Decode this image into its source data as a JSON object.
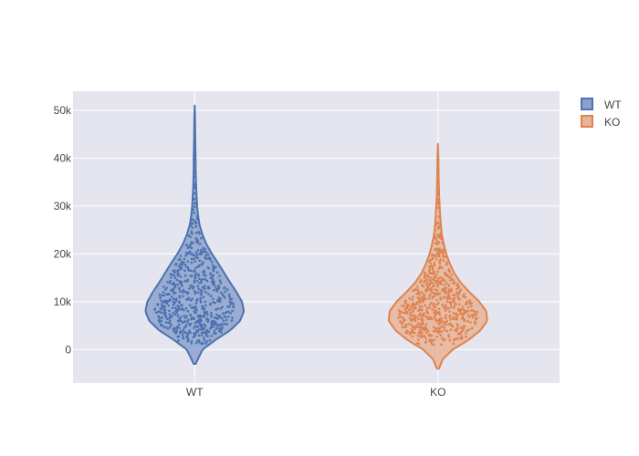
{
  "chart_data": {
    "type": "violin",
    "title": "",
    "xlabel": "",
    "ylabel": "",
    "categories": [
      "WT",
      "KO"
    ],
    "ylim": [
      -7000,
      54000
    ],
    "yticks": [
      0,
      10000,
      20000,
      30000,
      40000,
      50000
    ],
    "ytick_labels": [
      "0",
      "10k",
      "20k",
      "30k",
      "40k",
      "50k"
    ],
    "grid": true,
    "legend_position": "top-right",
    "series": [
      {
        "name": "WT",
        "color": "#4c72b0",
        "fill": "#8ca2cc",
        "kde_min": -3000,
        "kde_max": 51000,
        "point_count": 650,
        "point_min": 1000,
        "point_max": 47000,
        "median_approx": 9000,
        "density_profile": [
          [
            -3000,
            0.02
          ],
          [
            0,
            0.16
          ],
          [
            2000,
            0.42
          ],
          [
            4000,
            0.72
          ],
          [
            6000,
            0.92
          ],
          [
            8000,
            1.0
          ],
          [
            10000,
            0.96
          ],
          [
            12000,
            0.85
          ],
          [
            14000,
            0.72
          ],
          [
            16000,
            0.6
          ],
          [
            18000,
            0.48
          ],
          [
            20000,
            0.35
          ],
          [
            22000,
            0.24
          ],
          [
            24000,
            0.16
          ],
          [
            26000,
            0.1
          ],
          [
            28000,
            0.07
          ],
          [
            30000,
            0.05
          ],
          [
            32000,
            0.04
          ],
          [
            34000,
            0.03
          ],
          [
            36000,
            0.025
          ],
          [
            38000,
            0.02
          ],
          [
            40000,
            0.02
          ],
          [
            42000,
            0.015
          ],
          [
            44000,
            0.012
          ],
          [
            46000,
            0.01
          ],
          [
            48000,
            0.008
          ],
          [
            51000,
            0.0
          ]
        ]
      },
      {
        "name": "KO",
        "color": "#dd8452",
        "fill": "#e8b497",
        "kde_min": -4000,
        "kde_max": 43000,
        "point_count": 650,
        "point_min": 1000,
        "point_max": 40000,
        "median_approx": 7500,
        "density_profile": [
          [
            -4000,
            0.02
          ],
          [
            -2000,
            0.1
          ],
          [
            0,
            0.3
          ],
          [
            2000,
            0.62
          ],
          [
            4000,
            0.86
          ],
          [
            6000,
            1.0
          ],
          [
            8000,
            0.98
          ],
          [
            10000,
            0.84
          ],
          [
            12000,
            0.64
          ],
          [
            14000,
            0.46
          ],
          [
            16000,
            0.33
          ],
          [
            18000,
            0.24
          ],
          [
            20000,
            0.17
          ],
          [
            22000,
            0.12
          ],
          [
            24000,
            0.08
          ],
          [
            26000,
            0.06
          ],
          [
            28000,
            0.045
          ],
          [
            30000,
            0.035
          ],
          [
            32000,
            0.025
          ],
          [
            34000,
            0.02
          ],
          [
            36000,
            0.015
          ],
          [
            38000,
            0.012
          ],
          [
            40000,
            0.01
          ],
          [
            43000,
            0.0
          ]
        ]
      }
    ]
  }
}
